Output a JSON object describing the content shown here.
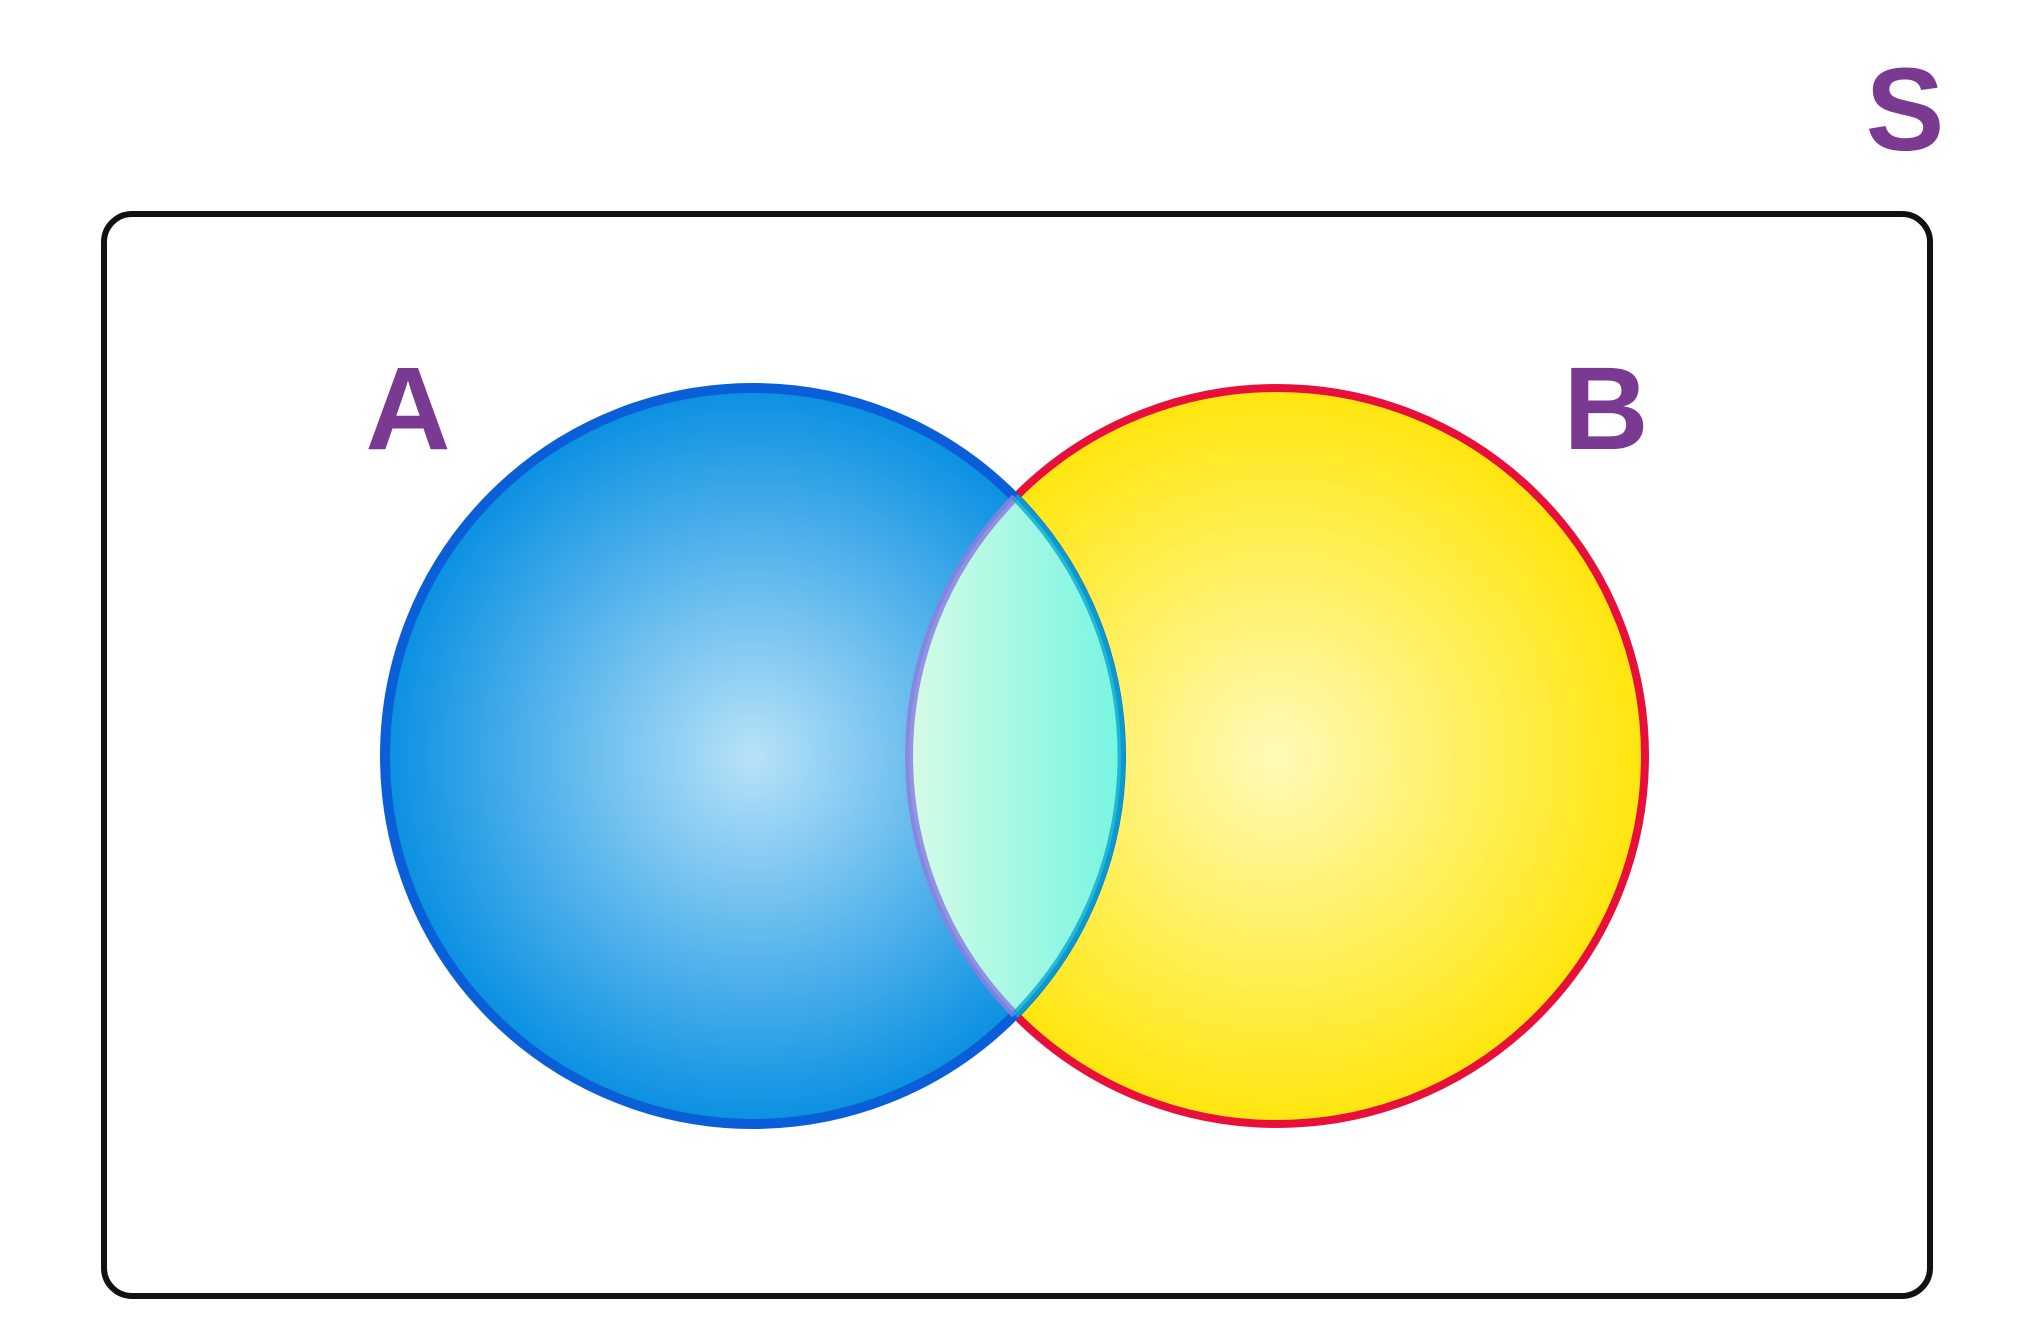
{
  "diagram": {
    "universe": {
      "label": "S",
      "border_color": "#111111"
    },
    "sets": [
      {
        "label": "A",
        "fill_center": "#b8e2f8",
        "fill_edge": "#0a90e2",
        "stroke": "#0a5fd8"
      },
      {
        "label": "B",
        "fill_center": "#fffab8",
        "fill_edge": "#ffe60e",
        "stroke": "#e8103a"
      }
    ],
    "intersection": {
      "fill_center": "#d6fbe6",
      "fill_edge": "#0ff0dc"
    },
    "label_color": "#7b3a92"
  }
}
